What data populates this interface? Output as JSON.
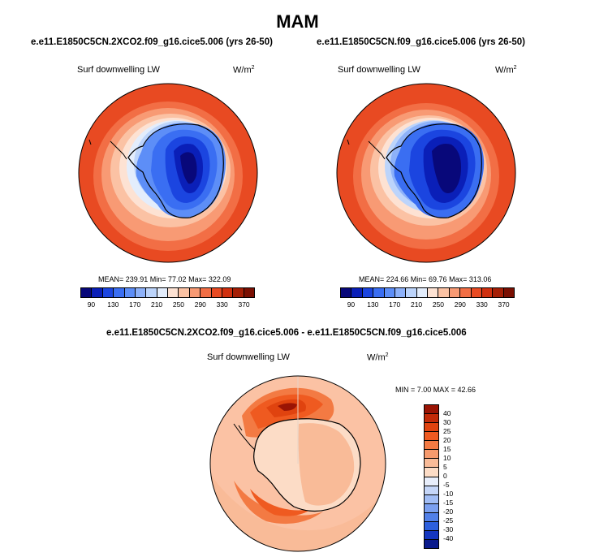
{
  "title": "MAM",
  "panels": {
    "left": {
      "case": "e.e11.E1850C5CN.2XCO2.f09_g16.cice5.006 (yrs 26-50)",
      "variable": "Surf downwelling LW",
      "units_base": "W/m",
      "units_exp": "2",
      "stats": "MEAN= 239.91  Min=  77.02  Max= 322.09",
      "stats_values": {
        "mean": 239.91,
        "min": 77.02,
        "max": 322.09
      }
    },
    "right": {
      "case": "e.e11.E1850C5CN.f09_g16.cice5.006 (yrs 26-50)",
      "variable": "Surf downwelling LW",
      "units_base": "W/m",
      "units_exp": "2",
      "stats": "MEAN= 224.66  Min=  69.76  Max= 313.06",
      "stats_values": {
        "mean": 224.66,
        "min": 69.76,
        "max": 313.06
      }
    },
    "diff": {
      "case": "e.e11.E1850C5CN.2XCO2.f09_g16.cice5.006 - e.e11.E1850C5CN.f09_g16.cice5.006",
      "variable": "Surf downwelling LW",
      "units_base": "W/m",
      "units_exp": "2",
      "stats": "MIN =   7.00 MAX =  42.66",
      "stats_values": {
        "min": 7.0,
        "max": 42.66
      }
    }
  },
  "abs_colorbar": {
    "labels": [
      "90",
      "130",
      "170",
      "210",
      "250",
      "290",
      "330",
      "370"
    ],
    "colors": [
      "#08087a",
      "#0a1fb8",
      "#1b45e0",
      "#3a6ef2",
      "#5d8ef7",
      "#8db1f9",
      "#bcd4fb",
      "#e3edfc",
      "#fde2d3",
      "#fbc2a4",
      "#f89a74",
      "#f26e45",
      "#e84a22",
      "#d0300f",
      "#a51f06",
      "#7a0f02"
    ]
  },
  "diff_colorbar": {
    "labels": [
      "40",
      "30",
      "25",
      "20",
      "15",
      "10",
      "5",
      "0",
      "-5",
      "-10",
      "-15",
      "-20",
      "-25",
      "-30",
      "-40"
    ],
    "colors": [
      "#9a1404",
      "#c22a08",
      "#e0430f",
      "#ef5a20",
      "#f37a43",
      "#f69a6d",
      "#f9bb98",
      "#fcdcc6",
      "#e8eefb",
      "#c5d6f8",
      "#a1bdf5",
      "#7ba0f0",
      "#5180e8",
      "#2c5fdd",
      "#1436c0",
      "#0a1a8c"
    ]
  },
  "colors": {
    "land_outline": "#000000"
  }
}
